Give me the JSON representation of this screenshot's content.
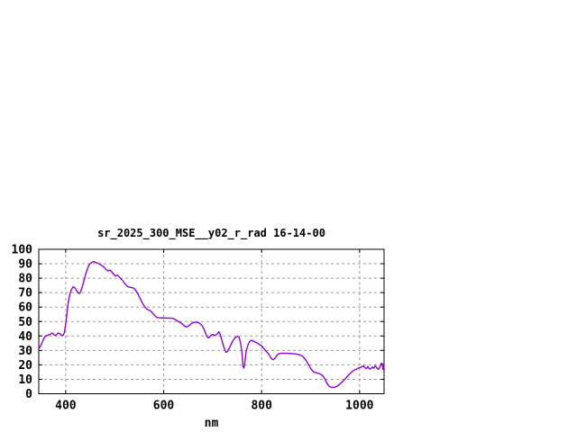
{
  "window": {
    "background": "#ffffff"
  },
  "chart_data": {
    "type": "line",
    "title": "sr_2025_300_MSE__y02_r_rad 16-14-00",
    "xlabel": "nm",
    "ylabel": "",
    "x_range": [
      345,
      1050
    ],
    "y_range": [
      0,
      100
    ],
    "x_ticks": [
      400,
      600,
      800,
      1000
    ],
    "y_ticks": [
      0,
      10,
      20,
      30,
      40,
      50,
      60,
      70,
      80,
      90,
      100
    ],
    "grid": true,
    "legend": "none",
    "colors": {
      "line": "#9400d3",
      "grid": "#9b9b9b",
      "border": "#000000",
      "text": "#000000",
      "background": "#ffffff"
    },
    "series": [
      {
        "points": [
          [
            345,
            31.3
          ],
          [
            348,
            32.6
          ],
          [
            351,
            34.8
          ],
          [
            354,
            37.2
          ],
          [
            357,
            39.2
          ],
          [
            360,
            40.2
          ],
          [
            362,
            40.4
          ],
          [
            365,
            40.7
          ],
          [
            368,
            41.1
          ],
          [
            371,
            41.7
          ],
          [
            373,
            41.9
          ],
          [
            375,
            41.2
          ],
          [
            377,
            40.6
          ],
          [
            379,
            40.4
          ],
          [
            382,
            41.2
          ],
          [
            385,
            42.1
          ],
          [
            388,
            41.5
          ],
          [
            390,
            40.8
          ],
          [
            393,
            40.4
          ],
          [
            395,
            40.6
          ],
          [
            397,
            42
          ],
          [
            399,
            46
          ],
          [
            401,
            51
          ],
          [
            403,
            57
          ],
          [
            405,
            62.5
          ],
          [
            407,
            66.5
          ],
          [
            409,
            69.5
          ],
          [
            411,
            71.5
          ],
          [
            413,
            72.8
          ],
          [
            415,
            74
          ],
          [
            417,
            73.8
          ],
          [
            419,
            73.2
          ],
          [
            421,
            72.2
          ],
          [
            423,
            71
          ],
          [
            425,
            70
          ],
          [
            427,
            69.4
          ],
          [
            429,
            69.8
          ],
          [
            431,
            71
          ],
          [
            433,
            73.2
          ],
          [
            435,
            75.5
          ],
          [
            437,
            78
          ],
          [
            439,
            80.5
          ],
          [
            441,
            83
          ],
          [
            443,
            85.2
          ],
          [
            445,
            87
          ],
          [
            447,
            88.6
          ],
          [
            449,
            89.7
          ],
          [
            451,
            90.4
          ],
          [
            453,
            90.9
          ],
          [
            455,
            91.2
          ],
          [
            457,
            91.4
          ],
          [
            459,
            91.3
          ],
          [
            461,
            91
          ],
          [
            464,
            90.6
          ],
          [
            467,
            90.1
          ],
          [
            470,
            89.6
          ],
          [
            473,
            88.9
          ],
          [
            476,
            88.2
          ],
          [
            479,
            87.4
          ],
          [
            482,
            86.2
          ],
          [
            485,
            85.3
          ],
          [
            488,
            85.1
          ],
          [
            490,
            85.6
          ],
          [
            492,
            85.2
          ],
          [
            495,
            84
          ],
          [
            498,
            82.7
          ],
          [
            501,
            81.6
          ],
          [
            504,
            81.8
          ],
          [
            506,
            82
          ],
          [
            509,
            81
          ],
          [
            512,
            80
          ],
          [
            515,
            78.9
          ],
          [
            518,
            77.5
          ],
          [
            520,
            76.5
          ],
          [
            523,
            75.3
          ],
          [
            526,
            74.4
          ],
          [
            529,
            73.9
          ],
          [
            532,
            73.7
          ],
          [
            535,
            73.5
          ],
          [
            538,
            73.2
          ],
          [
            541,
            72.5
          ],
          [
            544,
            71
          ],
          [
            547,
            69.3
          ],
          [
            550,
            67.3
          ],
          [
            553,
            65.3
          ],
          [
            556,
            63.3
          ],
          [
            558,
            62
          ],
          [
            560,
            61
          ],
          [
            563,
            59.5
          ],
          [
            566,
            58.6
          ],
          [
            569,
            58.1
          ],
          [
            572,
            57.6
          ],
          [
            575,
            56.8
          ],
          [
            578,
            55.6
          ],
          [
            581,
            54.4
          ],
          [
            584,
            53.4
          ],
          [
            587,
            52.8
          ],
          [
            590,
            52.6
          ],
          [
            594,
            52.5
          ],
          [
            598,
            52.5
          ],
          [
            602,
            52.5
          ],
          [
            606,
            52.4
          ],
          [
            610,
            52.4
          ],
          [
            614,
            52.3
          ],
          [
            618,
            52.2
          ],
          [
            622,
            51.7
          ],
          [
            626,
            50.9
          ],
          [
            630,
            50.1
          ],
          [
            634,
            49.3
          ],
          [
            638,
            48.3
          ],
          [
            641,
            47.4
          ],
          [
            644,
            46.6
          ],
          [
            647,
            46.2
          ],
          [
            650,
            46.7
          ],
          [
            653,
            47.5
          ],
          [
            656,
            48.4
          ],
          [
            659,
            49
          ],
          [
            662,
            49.4
          ],
          [
            665,
            49.5
          ],
          [
            668,
            49.5
          ],
          [
            671,
            49.2
          ],
          [
            674,
            48.7
          ],
          [
            677,
            47.7
          ],
          [
            680,
            46.4
          ],
          [
            683,
            44.3
          ],
          [
            686,
            41.5
          ],
          [
            689,
            39.3
          ],
          [
            691,
            38.6
          ],
          [
            694,
            39.3
          ],
          [
            697,
            40.5
          ],
          [
            700,
            41.1
          ],
          [
            703,
            40.7
          ],
          [
            706,
            40.4
          ],
          [
            709,
            41.4
          ],
          [
            713,
            42.9
          ],
          [
            716,
            40.5
          ],
          [
            719,
            37
          ],
          [
            722,
            33.2
          ],
          [
            725,
            30.3
          ],
          [
            727,
            28.7
          ],
          [
            730,
            29.2
          ],
          [
            733,
            30.9
          ],
          [
            736,
            33
          ],
          [
            739,
            35.1
          ],
          [
            742,
            37
          ],
          [
            745,
            38.4
          ],
          [
            748,
            39.3
          ],
          [
            751,
            39.8
          ],
          [
            754,
            39
          ],
          [
            757,
            35.5
          ],
          [
            760,
            28
          ],
          [
            762,
            19
          ],
          [
            764,
            17.8
          ],
          [
            766,
            22
          ],
          [
            768,
            28.5
          ],
          [
            770,
            31.5
          ],
          [
            772,
            33.5
          ],
          [
            775,
            35.8
          ],
          [
            778,
            36.9
          ],
          [
            781,
            36.8
          ],
          [
            784,
            36.3
          ],
          [
            787,
            35.8
          ],
          [
            790,
            35.3
          ],
          [
            793,
            34.7
          ],
          [
            796,
            34
          ],
          [
            800,
            33.2
          ],
          [
            803,
            32
          ],
          [
            806,
            30.8
          ],
          [
            809,
            29.5
          ],
          [
            812,
            28.5
          ],
          [
            815,
            27.2
          ],
          [
            818,
            25.5
          ],
          [
            821,
            24
          ],
          [
            824,
            23.5
          ],
          [
            827,
            24.5
          ],
          [
            830,
            26
          ],
          [
            833,
            27.2
          ],
          [
            836,
            27.8
          ],
          [
            840,
            28
          ],
          [
            844,
            28
          ],
          [
            848,
            28
          ],
          [
            852,
            28
          ],
          [
            856,
            27.9
          ],
          [
            860,
            27.8
          ],
          [
            864,
            27.7
          ],
          [
            868,
            27.6
          ],
          [
            872,
            27.4
          ],
          [
            875,
            27.2
          ],
          [
            878,
            26.9
          ],
          [
            881,
            26.5
          ],
          [
            884,
            25.8
          ],
          [
            887,
            24.8
          ],
          [
            890,
            23.4
          ],
          [
            893,
            21.8
          ],
          [
            896,
            20
          ],
          [
            899,
            18.2
          ],
          [
            902,
            16.6
          ],
          [
            905,
            15.5
          ],
          [
            908,
            14.9
          ],
          [
            911,
            14.5
          ],
          [
            914,
            14.3
          ],
          [
            917,
            14
          ],
          [
            920,
            13.6
          ],
          [
            923,
            13
          ],
          [
            926,
            11.9
          ],
          [
            929,
            10.3
          ],
          [
            932,
            8.2
          ],
          [
            935,
            6.3
          ],
          [
            938,
            5.1
          ],
          [
            941,
            4.6
          ],
          [
            944,
            4.4
          ],
          [
            948,
            4.4
          ],
          [
            952,
            4.8
          ],
          [
            955,
            5.4
          ],
          [
            958,
            6.2
          ],
          [
            962,
            7.4
          ],
          [
            966,
            8.6
          ],
          [
            970,
            10
          ],
          [
            974,
            11.6
          ],
          [
            978,
            13.1
          ],
          [
            982,
            14.4
          ],
          [
            986,
            15.7
          ],
          [
            990,
            16.5
          ],
          [
            994,
            17.1
          ],
          [
            998,
            17.8
          ],
          [
            1002,
            18.3
          ],
          [
            1005,
            18.8
          ],
          [
            1008,
            19.4
          ],
          [
            1011,
            18
          ],
          [
            1014,
            17.4
          ],
          [
            1017,
            18.9
          ],
          [
            1020,
            17.1
          ],
          [
            1023,
            17.3
          ],
          [
            1026,
            18.5
          ],
          [
            1029,
            17.7
          ],
          [
            1032,
            19.4
          ],
          [
            1035,
            17.9
          ],
          [
            1038,
            16.9
          ],
          [
            1041,
            18
          ],
          [
            1044,
            20.9
          ],
          [
            1046,
            21.2
          ],
          [
            1048,
            16.8
          ],
          [
            1050,
            19.3
          ]
        ]
      }
    ]
  }
}
